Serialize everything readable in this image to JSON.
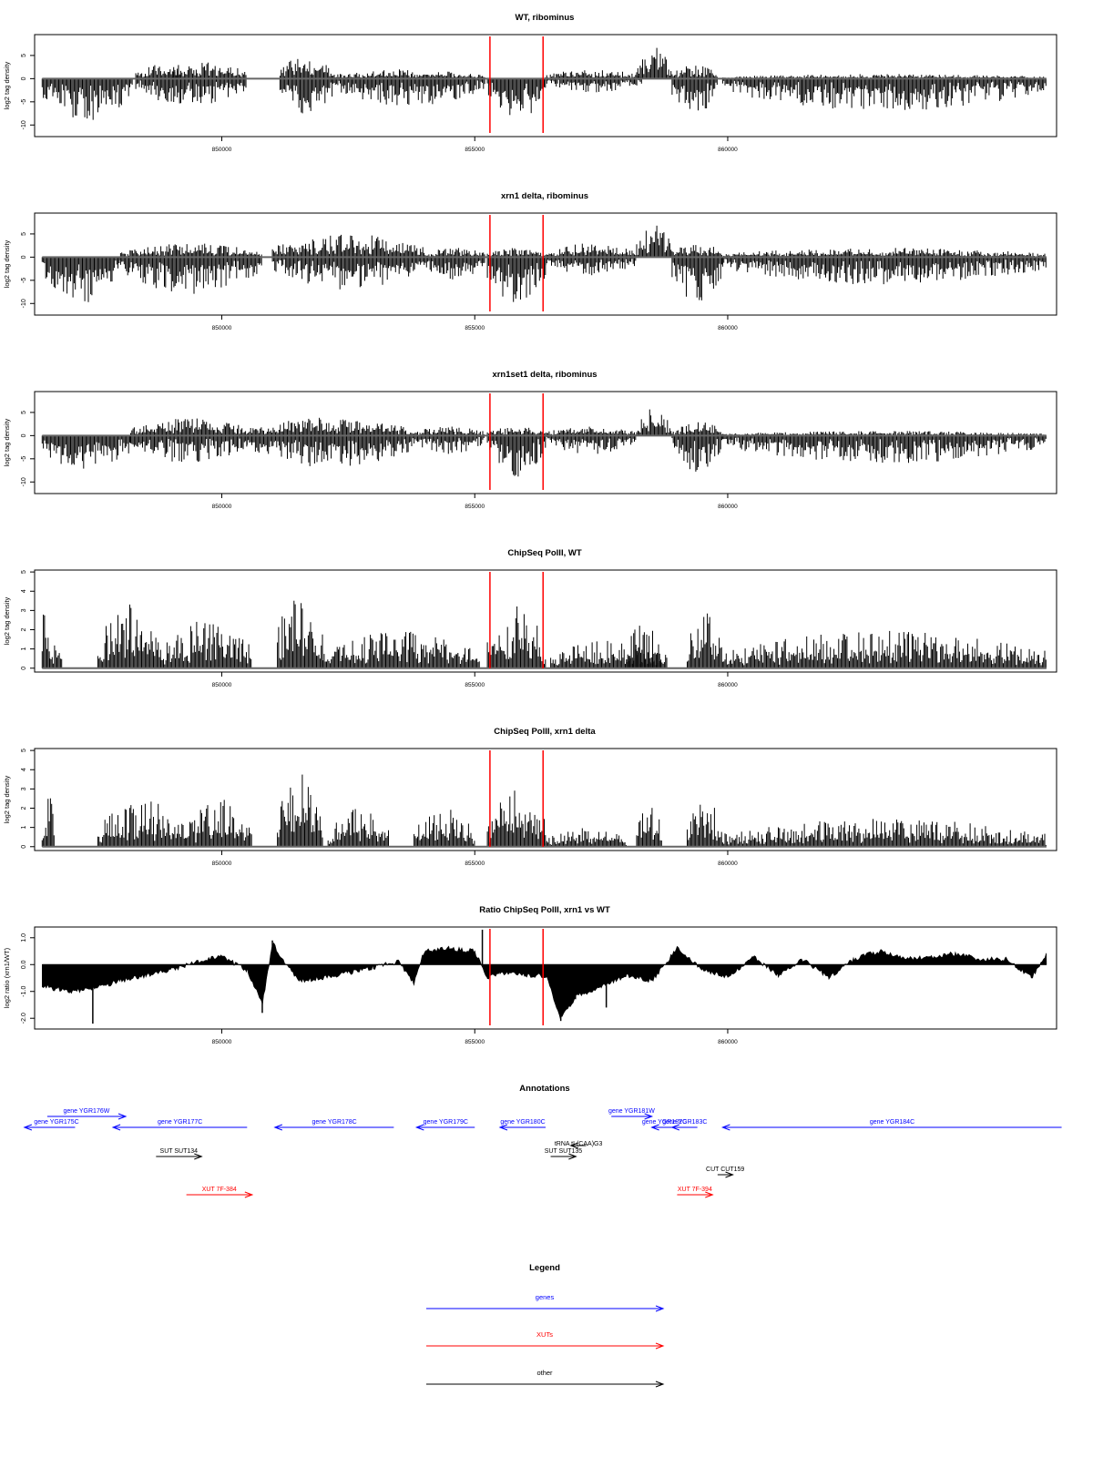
{
  "xaxis": {
    "range": [
      846300,
      866500
    ],
    "ticks": [
      850000,
      855000,
      860000
    ],
    "tick_labels": [
      "850000",
      "855000",
      "860000"
    ]
  },
  "highlight_lines": {
    "color": "#ff0000",
    "x": [
      855300,
      856350
    ]
  },
  "chart_data": [
    {
      "type": "bar",
      "title": "WT, ribominus",
      "ylabel": "log2 tag density",
      "ylim": [
        -12.5,
        9.5
      ],
      "yticks": [
        -10,
        -5,
        0,
        5
      ],
      "ytick_labels": [
        "-10",
        "-5",
        "0",
        "5"
      ],
      "regions": [
        {
          "x0": 846450,
          "x1": 848250,
          "lo": -9,
          "hi": 0
        },
        {
          "x0": 848300,
          "x1": 850500,
          "lo": -6,
          "hi": 4
        },
        {
          "x0": 849000,
          "x1": 849200,
          "lo": 0,
          "hi": 3
        },
        {
          "x0": 851150,
          "x1": 852200,
          "lo": -8,
          "hi": 5
        },
        {
          "x0": 852200,
          "x1": 855200,
          "lo": -6,
          "hi": 2
        },
        {
          "x0": 855250,
          "x1": 856400,
          "lo": -9,
          "hi": 0
        },
        {
          "x0": 856400,
          "x1": 858300,
          "lo": -3,
          "hi": 2
        },
        {
          "x0": 858200,
          "x1": 858900,
          "lo": 0,
          "hi": 7
        },
        {
          "x0": 858900,
          "x1": 859800,
          "lo": -8,
          "hi": 3
        },
        {
          "x0": 859900,
          "x1": 866300,
          "lo": -7,
          "hi": 1
        }
      ]
    },
    {
      "type": "bar",
      "title": "xrn1 delta, ribominus",
      "ylabel": "log2 tag density",
      "ylim": [
        -12.5,
        9.5
      ],
      "yticks": [
        -10,
        -5,
        0,
        5
      ],
      "ytick_labels": [
        "-10",
        "-5",
        "0",
        "5"
      ],
      "regions": [
        {
          "x0": 846450,
          "x1": 848000,
          "lo": -10,
          "hi": 0
        },
        {
          "x0": 848000,
          "x1": 850800,
          "lo": -8,
          "hi": 3
        },
        {
          "x0": 851000,
          "x1": 854000,
          "lo": -7,
          "hi": 5
        },
        {
          "x0": 854000,
          "x1": 855200,
          "lo": -5,
          "hi": 2
        },
        {
          "x0": 855250,
          "x1": 856400,
          "lo": -10,
          "hi": 2
        },
        {
          "x0": 856400,
          "x1": 858200,
          "lo": -4,
          "hi": 3
        },
        {
          "x0": 858200,
          "x1": 858900,
          "lo": 0,
          "hi": 7
        },
        {
          "x0": 858900,
          "x1": 859900,
          "lo": -10,
          "hi": 3
        },
        {
          "x0": 859900,
          "x1": 866300,
          "lo": -6,
          "hi": 2
        }
      ]
    },
    {
      "type": "bar",
      "title": "xrn1set1 delta, ribominus",
      "ylabel": "log2 tag density",
      "ylim": [
        -12.5,
        9.5
      ],
      "yticks": [
        -10,
        -5,
        0,
        5
      ],
      "ytick_labels": [
        "-10",
        "-5",
        "0",
        "5"
      ],
      "regions": [
        {
          "x0": 846450,
          "x1": 848200,
          "lo": -8,
          "hi": 0
        },
        {
          "x0": 848200,
          "x1": 850500,
          "lo": -6,
          "hi": 4
        },
        {
          "x0": 850500,
          "x1": 853800,
          "lo": -7,
          "hi": 4
        },
        {
          "x0": 853800,
          "x1": 855200,
          "lo": -4,
          "hi": 2
        },
        {
          "x0": 855250,
          "x1": 856400,
          "lo": -9,
          "hi": 2
        },
        {
          "x0": 856400,
          "x1": 858200,
          "lo": -4,
          "hi": 2
        },
        {
          "x0": 858200,
          "x1": 858900,
          "lo": 0,
          "hi": 6
        },
        {
          "x0": 858900,
          "x1": 859900,
          "lo": -8,
          "hi": 3
        },
        {
          "x0": 859900,
          "x1": 866300,
          "lo": -6,
          "hi": 1
        }
      ]
    },
    {
      "type": "bar",
      "title": "ChipSeq PolII, WT",
      "ylabel": "log2 tag density",
      "ylim": [
        -0.2,
        5.1
      ],
      "yticks": [
        0,
        1,
        2,
        3,
        4,
        5
      ],
      "ytick_labels": [
        "0",
        "1",
        "2",
        "3",
        "4",
        "5"
      ],
      "regions": [
        {
          "x0": 846450,
          "x1": 846600,
          "lo": 0,
          "hi": 4
        },
        {
          "x0": 846600,
          "x1": 846850,
          "lo": 0,
          "hi": 2
        },
        {
          "x0": 846850,
          "x1": 847550,
          "lo": 0,
          "hi": 0
        },
        {
          "x0": 847550,
          "x1": 848800,
          "lo": 0,
          "hi": 3.5
        },
        {
          "x0": 848800,
          "x1": 850600,
          "lo": 0,
          "hi": 2.5
        },
        {
          "x0": 851100,
          "x1": 852000,
          "lo": 0,
          "hi": 4.5
        },
        {
          "x0": 852000,
          "x1": 855100,
          "lo": 0,
          "hi": 2
        },
        {
          "x0": 855250,
          "x1": 856400,
          "lo": 0,
          "hi": 3.5
        },
        {
          "x0": 856500,
          "x1": 858800,
          "lo": 0,
          "hi": 1.5
        },
        {
          "x0": 858000,
          "x1": 858700,
          "lo": 0,
          "hi": 2.5
        },
        {
          "x0": 859200,
          "x1": 859900,
          "lo": 0,
          "hi": 3
        },
        {
          "x0": 859900,
          "x1": 866300,
          "lo": 0,
          "hi": 2
        }
      ]
    },
    {
      "type": "bar",
      "title": "ChipSeq PolII, xrn1 delta",
      "ylabel": "log2 tag density",
      "ylim": [
        -0.2,
        5.1
      ],
      "yticks": [
        0,
        1,
        2,
        3,
        4,
        5
      ],
      "ytick_labels": [
        "0",
        "1",
        "2",
        "3",
        "4",
        "5"
      ],
      "regions": [
        {
          "x0": 846450,
          "x1": 846700,
          "lo": 0,
          "hi": 3
        },
        {
          "x0": 847550,
          "x1": 849300,
          "lo": 0,
          "hi": 2.5
        },
        {
          "x0": 849300,
          "x1": 850600,
          "lo": 0,
          "hi": 2.5
        },
        {
          "x0": 851100,
          "x1": 852000,
          "lo": 0,
          "hi": 4
        },
        {
          "x0": 852100,
          "x1": 853300,
          "lo": 0,
          "hi": 2
        },
        {
          "x0": 853800,
          "x1": 855000,
          "lo": 0,
          "hi": 2
        },
        {
          "x0": 855250,
          "x1": 856400,
          "lo": 0,
          "hi": 3
        },
        {
          "x0": 856400,
          "x1": 858000,
          "lo": 0,
          "hi": 1
        },
        {
          "x0": 858200,
          "x1": 858700,
          "lo": 0,
          "hi": 2.3
        },
        {
          "x0": 859200,
          "x1": 859900,
          "lo": 0,
          "hi": 2.6
        },
        {
          "x0": 859900,
          "x1": 866300,
          "lo": 0,
          "hi": 1.5
        }
      ]
    },
    {
      "type": "area",
      "title": "Ratio ChipSeq PolII, xrn1 vs WT",
      "ylabel": "log2 ratio (xrn1/WT)",
      "ylim": [
        -2.4,
        1.4
      ],
      "yticks": [
        -2.0,
        -1.0,
        0.0,
        1.0
      ],
      "ytick_labels": [
        "-2.0",
        "-1.0",
        "0.0",
        "1.0"
      ],
      "x": [
        846450,
        847000,
        847500,
        848000,
        848500,
        849000,
        849500,
        850000,
        850500,
        850800,
        851000,
        851500,
        852000,
        852500,
        853000,
        853500,
        853800,
        854000,
        854500,
        855000,
        855250,
        855500,
        856000,
        856400,
        856700,
        857000,
        857500,
        858000,
        858500,
        859000,
        859500,
        860000,
        860500,
        861000,
        861500,
        862000,
        862500,
        863000,
        863500,
        864000,
        864500,
        865000,
        865500,
        866000,
        866300
      ],
      "y": [
        -0.8,
        -1.0,
        -0.9,
        -0.6,
        -0.4,
        -0.2,
        0.1,
        0.3,
        -0.2,
        -1.5,
        0.8,
        -0.6,
        -0.5,
        -0.3,
        -0.1,
        0.1,
        -0.7,
        0.5,
        0.6,
        0.5,
        -0.5,
        -0.3,
        -0.4,
        -0.4,
        -2.0,
        -1.2,
        -0.8,
        -0.4,
        -0.6,
        0.6,
        -0.2,
        -0.5,
        0.3,
        -0.4,
        0.2,
        -0.5,
        0.2,
        0.5,
        0.2,
        0.3,
        0.4,
        0.2,
        0.2,
        -0.5,
        0.4
      ]
    }
  ],
  "annotations": {
    "title": "Annotations",
    "features": [
      {
        "label": "gene YGR175C",
        "x0": 846100,
        "x1": 847100,
        "dir": -1,
        "row": 1,
        "kind": "gene"
      },
      {
        "label": "gene YGR176W",
        "x0": 846550,
        "x1": 848100,
        "dir": 1,
        "row": 0,
        "kind": "gene"
      },
      {
        "label": "gene YGR177C",
        "x0": 847850,
        "x1": 850500,
        "dir": -1,
        "row": 1,
        "kind": "gene"
      },
      {
        "label": "gene YGR178C",
        "x0": 851050,
        "x1": 853400,
        "dir": -1,
        "row": 1,
        "kind": "gene"
      },
      {
        "label": "gene YGR179C",
        "x0": 853850,
        "x1": 855000,
        "dir": -1,
        "row": 1,
        "kind": "gene"
      },
      {
        "label": "gene YGR180C",
        "x0": 855500,
        "x1": 856400,
        "dir": -1,
        "row": 1,
        "kind": "gene"
      },
      {
        "label": "gene YGR181W",
        "x0": 857700,
        "x1": 858500,
        "dir": 1,
        "row": 0,
        "kind": "gene"
      },
      {
        "label": "gene YGR182C",
        "x0": 858500,
        "x1": 859000,
        "dir": -1,
        "row": 1,
        "kind": "gene"
      },
      {
        "label": "gene YGR183C",
        "x0": 858900,
        "x1": 859400,
        "dir": -1,
        "row": 1,
        "kind": "gene"
      },
      {
        "label": "gene YGR184C",
        "x0": 859900,
        "x1": 866600,
        "dir": -1,
        "row": 1,
        "kind": "gene"
      },
      {
        "label": "tRNA tL(CAA)G3",
        "x0": 856900,
        "x1": 857200,
        "dir": -1,
        "row": 2,
        "kind": "other"
      },
      {
        "label": "SUT SUT134",
        "x0": 848700,
        "x1": 849600,
        "dir": 1,
        "row": 3,
        "kind": "other"
      },
      {
        "label": "SUT SUT135",
        "x0": 856500,
        "x1": 857000,
        "dir": 1,
        "row": 3,
        "kind": "other"
      },
      {
        "label": "CUT CUT159",
        "x0": 859800,
        "x1": 860100,
        "dir": 1,
        "row": 4,
        "kind": "other"
      },
      {
        "label": "XUT 7F-384",
        "x0": 849300,
        "x1": 850600,
        "dir": 1,
        "row": 5,
        "kind": "xut"
      },
      {
        "label": "XUT 7F-394",
        "x0": 859000,
        "x1": 859700,
        "dir": 1,
        "row": 5,
        "kind": "xut"
      }
    ]
  },
  "legend": {
    "title": "Legend",
    "items": [
      {
        "label": "genes",
        "color": "#0000ff"
      },
      {
        "label": "XUTs",
        "color": "#ff0000"
      },
      {
        "label": "other",
        "color": "#000000"
      }
    ]
  },
  "colors": {
    "genes": "#0000ff",
    "xut": "#ff0000",
    "other": "#000000",
    "bars": "#000000",
    "axis": "#000000"
  }
}
